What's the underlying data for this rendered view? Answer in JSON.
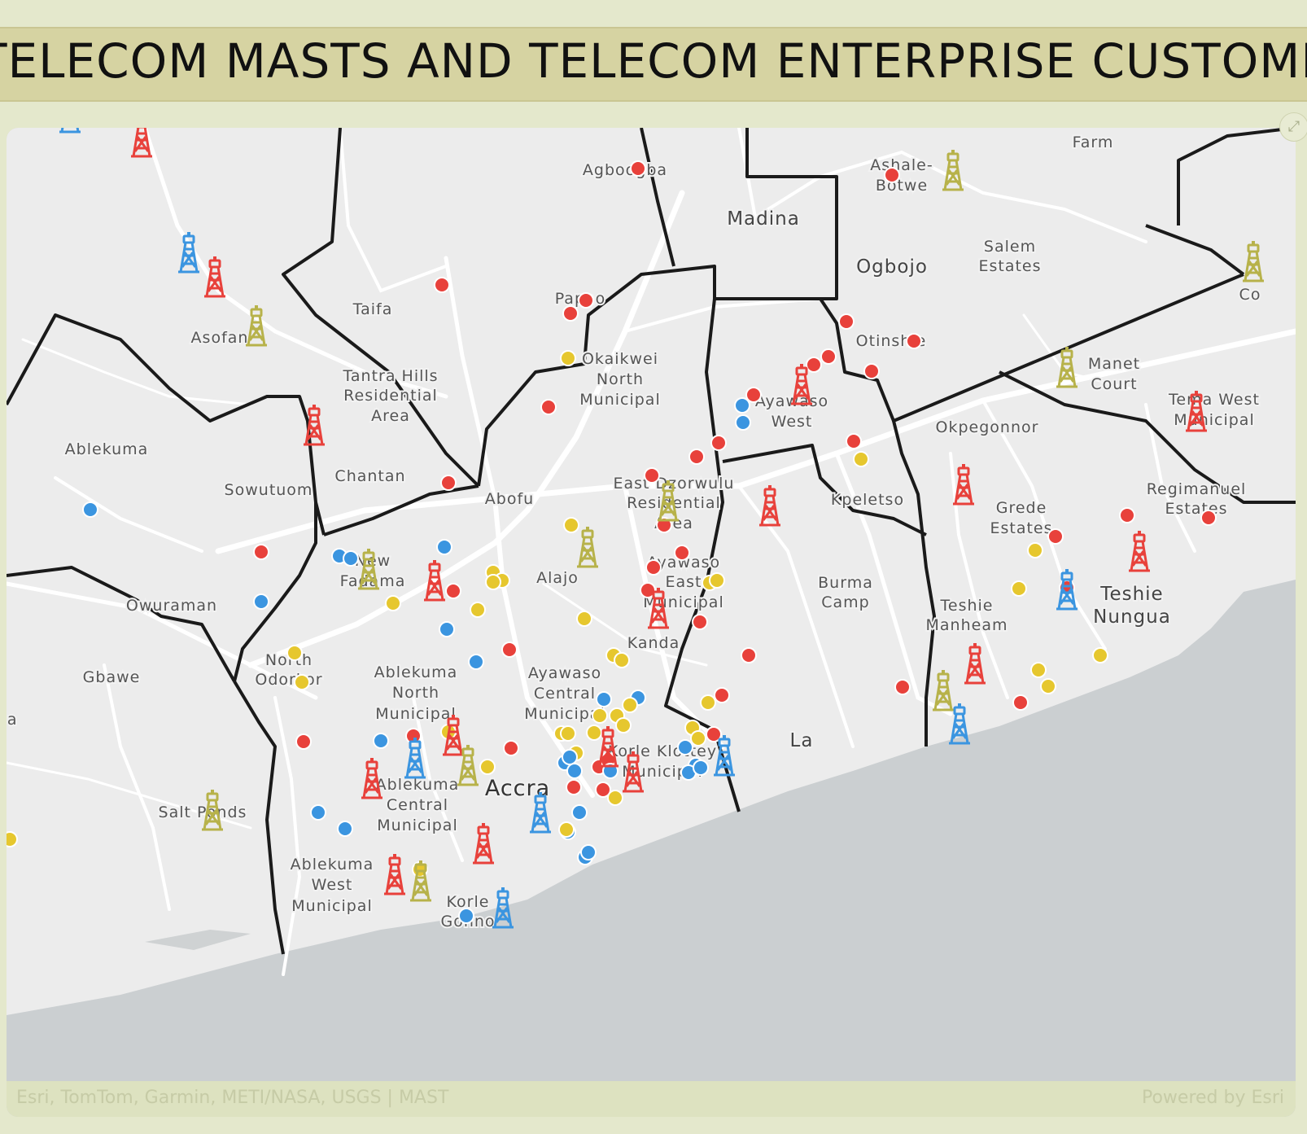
{
  "title": "TION OF TELECOM MASTS AND TELECOM ENTERPRISE CUSTOME",
  "attribution": "Esri, TomTom, Garmin, METI/NASA, USGS | MAST",
  "powered_by": "Powered by Esri",
  "colors": {
    "red": "#e8413b",
    "blue": "#3b95e0",
    "yellow": "#e6c72e",
    "olive": "#b7b24a",
    "land": "#ececec",
    "water": "#cbcfd1",
    "boundary": "#1a1a1a",
    "road": "#ffffff"
  },
  "icons": {
    "mast": "telecom-mast-icon",
    "dot": "customer-dot-icon",
    "expand": "expand-icon"
  },
  "labels": [
    {
      "t": "Farm"
    },
    {
      "t": "Agboogba"
    },
    {
      "t": "Madina"
    },
    {
      "t": "Ashale-"
    },
    {
      "t": "Botwe"
    },
    {
      "t": "Salem"
    },
    {
      "t": "Estates"
    },
    {
      "t": "Ogbojo"
    },
    {
      "t": "Taifa"
    },
    {
      "t": "Papao"
    },
    {
      "t": "Asofan"
    },
    {
      "t": "Otinshie"
    },
    {
      "t": "Okaikwei"
    },
    {
      "t": "North"
    },
    {
      "t": "Municipal"
    },
    {
      "t": "Tantra Hills"
    },
    {
      "t": "Residential"
    },
    {
      "t": "Area"
    },
    {
      "t": "Manet"
    },
    {
      "t": "Court"
    },
    {
      "t": "Ayawaso"
    },
    {
      "t": "West"
    },
    {
      "t": "Tema West"
    },
    {
      "t": "Municipal"
    },
    {
      "t": "Okpegonnor"
    },
    {
      "t": "Ablekuma"
    },
    {
      "t": "Chantan"
    },
    {
      "t": "Sowutuom"
    },
    {
      "t": "Abofu"
    },
    {
      "t": "East Dzorwulu"
    },
    {
      "t": "Residential"
    },
    {
      "t": "Area"
    },
    {
      "t": "Kpeletso"
    },
    {
      "t": "Regimanuel"
    },
    {
      "t": "Estates"
    },
    {
      "t": "Grede"
    },
    {
      "t": "Estates"
    },
    {
      "t": "New"
    },
    {
      "t": "Fadama"
    },
    {
      "t": "Alajo"
    },
    {
      "t": "Ayawaso"
    },
    {
      "t": "East"
    },
    {
      "t": "Municipal"
    },
    {
      "t": "Burma"
    },
    {
      "t": "Camp"
    },
    {
      "t": "Teshie"
    },
    {
      "t": "Nungua"
    },
    {
      "t": "Teshie"
    },
    {
      "t": "Manheam"
    },
    {
      "t": "Owuraman"
    },
    {
      "t": "Kanda"
    },
    {
      "t": "North"
    },
    {
      "t": "Odorkor"
    },
    {
      "t": "Gbawe"
    },
    {
      "t": "Ablekuma"
    },
    {
      "t": "North"
    },
    {
      "t": "Municipal"
    },
    {
      "t": "Ayawaso"
    },
    {
      "t": "Central"
    },
    {
      "t": "Municipal"
    },
    {
      "t": "ja"
    },
    {
      "t": "Korle Klottey"
    },
    {
      "t": "Municipal"
    },
    {
      "t": "La"
    },
    {
      "t": "Ablekuma"
    },
    {
      "t": "Central"
    },
    {
      "t": "Municipal"
    },
    {
      "t": "Accra"
    },
    {
      "t": "Salt Ponds"
    },
    {
      "t": "Ablekuma"
    },
    {
      "t": "West"
    },
    {
      "t": "Municipal"
    },
    {
      "t": "Korle"
    },
    {
      "t": "Gonno"
    },
    {
      "t": "Co"
    }
  ]
}
